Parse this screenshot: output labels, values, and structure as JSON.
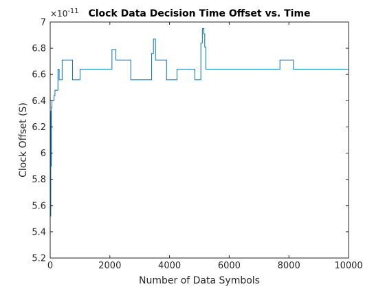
{
  "chart_data": {
    "type": "line",
    "title": "Clock Data Decision Time Offset vs. Time",
    "xlabel": "Number of Data Symbols",
    "ylabel": "Clock Offset (S)",
    "y_exponent_label": "×10",
    "y_exponent_power": "-11",
    "xlim": [
      0,
      10000
    ],
    "ylim": [
      5.2,
      7.0
    ],
    "y_scale_factor": "1e-11",
    "grid": false,
    "step": true,
    "x_ticks": [
      0,
      2000,
      4000,
      6000,
      8000,
      10000
    ],
    "x_tick_labels": [
      "0",
      "2000",
      "4000",
      "6000",
      "8000",
      "10000"
    ],
    "y_ticks": [
      5.2,
      5.4,
      5.6,
      5.8,
      6.0,
      6.2,
      6.4,
      6.6,
      6.8,
      7.0
    ],
    "y_tick_labels": [
      "5.2",
      "5.4",
      "5.6",
      "5.8",
      "6",
      "6.2",
      "6.4",
      "6.6",
      "6.8",
      "7"
    ],
    "series": [
      {
        "color": "#0072BD",
        "x": [
          0,
          20,
          30,
          40,
          60,
          80,
          100,
          130,
          160,
          200,
          260,
          300,
          330,
          400,
          480,
          750,
          1000,
          2000,
          2070,
          2200,
          2700,
          3350,
          3400,
          3460,
          3530,
          3600,
          3900,
          4250,
          4850,
          5050,
          5100,
          5150,
          5180,
          5220,
          7500,
          7650,
          7700,
          8150,
          10000
        ],
        "y": [
          5.52,
          6.32,
          5.9,
          6.35,
          6.4,
          6.4,
          6.4,
          6.44,
          6.48,
          6.48,
          6.64,
          6.56,
          6.56,
          6.71,
          6.71,
          6.56,
          6.64,
          6.64,
          6.79,
          6.71,
          6.56,
          6.56,
          6.76,
          6.87,
          6.71,
          6.71,
          6.56,
          6.64,
          6.56,
          6.84,
          6.95,
          6.91,
          6.81,
          6.64,
          6.64,
          6.64,
          6.71,
          6.64,
          6.64
        ]
      }
    ]
  }
}
